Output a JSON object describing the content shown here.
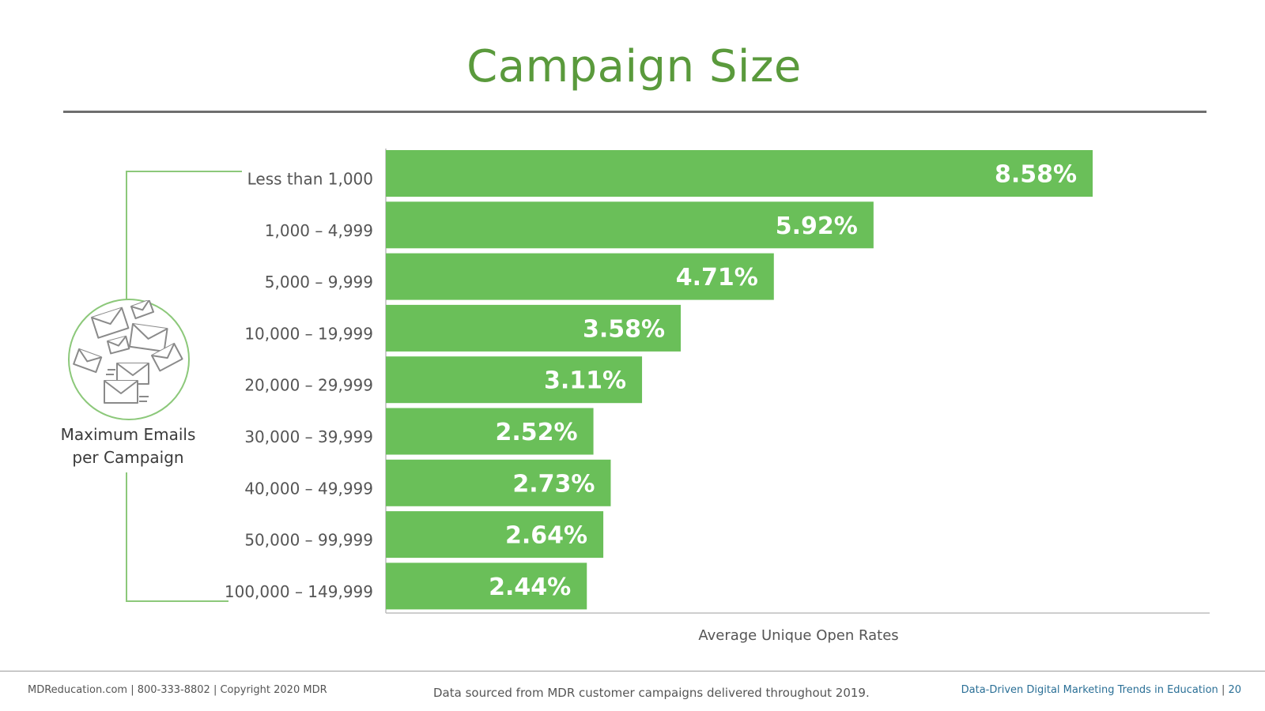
{
  "title": "Campaign Size",
  "side_label_line1": "Maximum Emails",
  "side_label_line2": "per Campaign",
  "axis_title": "Average Unique Open Rates",
  "footer": {
    "site": "MDReducation.com",
    "phone": "800-333-8802",
    "copyright": "Copyright 2020 MDR",
    "source_note": "Data sourced from MDR customer campaigns delivered throughout 2019.",
    "report_title": "Data-Driven Digital Marketing Trends in Education",
    "page_number": "20"
  },
  "colors": {
    "title": "#5a9a3c",
    "bar": "#6abf59",
    "bar_label": "#ffffff",
    "category_label": "#555555",
    "accent_line": "#8cc87a"
  },
  "icons": [
    "envelopes-icon"
  ],
  "chart_data": {
    "type": "bar",
    "orientation": "horizontal",
    "categories": [
      "Less than 1,000",
      "1,000 – 4,999",
      "5,000 – 9,999",
      "10,000 – 19,999",
      "20,000 – 29,999",
      "30,000 – 39,999",
      "40,000 – 49,999",
      "50,000 – 99,999",
      "100,000 – 149,999"
    ],
    "values": [
      8.58,
      5.92,
      4.71,
      3.58,
      3.11,
      2.52,
      2.73,
      2.64,
      2.44
    ],
    "value_labels": [
      "8.58%",
      "5.92%",
      "4.71%",
      "3.58%",
      "3.11%",
      "2.52%",
      "2.73%",
      "2.64%",
      "2.44%"
    ],
    "xlabel": "Average Unique Open Rates",
    "ylabel": "Maximum Emails per Campaign",
    "xlim": [
      0,
      10
    ],
    "grid": false,
    "legend": false
  }
}
